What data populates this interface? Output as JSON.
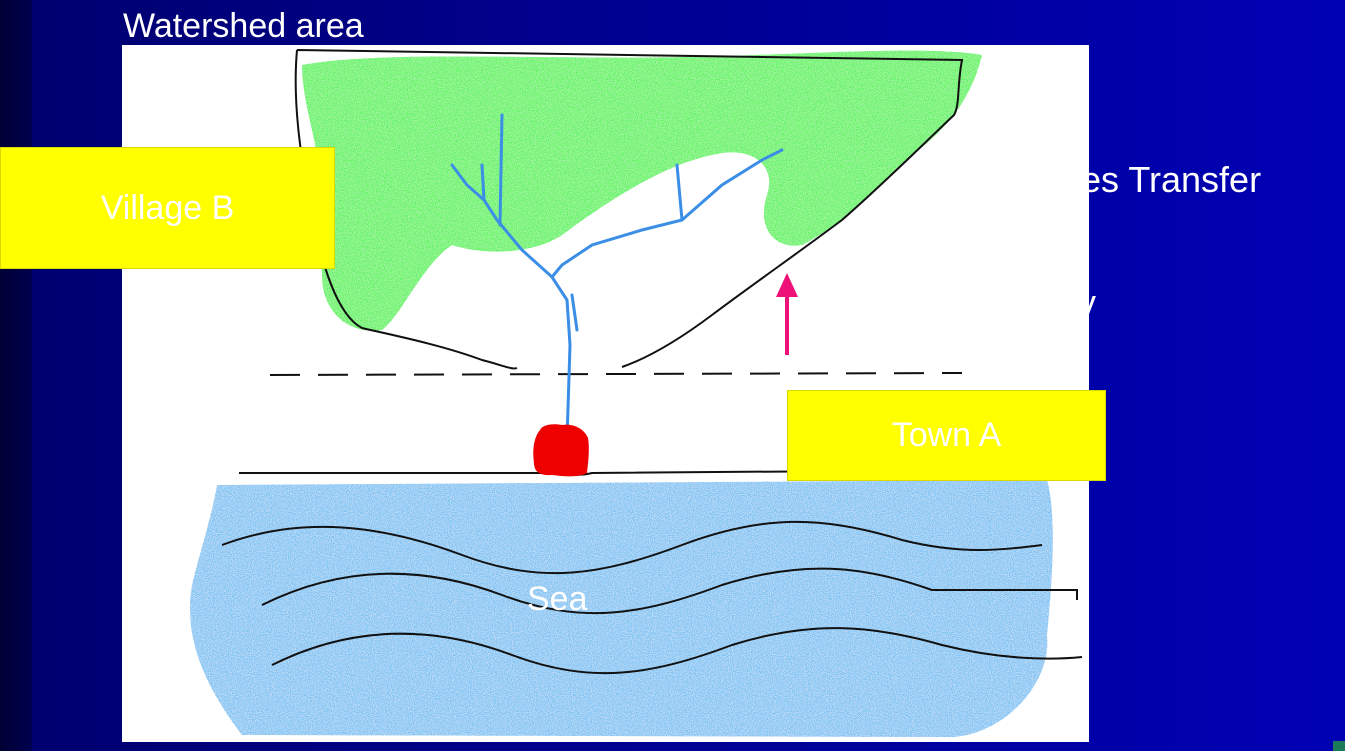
{
  "slide": {
    "title": "Watershed area",
    "partial_text_1": "ces Transfer",
    "partial_text_2": "y"
  },
  "diagram": {
    "village_label": "Village B",
    "town_label": "Town A",
    "sea_label": "Sea"
  },
  "colors": {
    "background": "#00008c",
    "forest": "#22e622",
    "sea": "#3a8ee6",
    "river": "#3a8ee6",
    "town": "#ee0000",
    "arrow": "#ee1177",
    "label_box": "#ffff00"
  }
}
